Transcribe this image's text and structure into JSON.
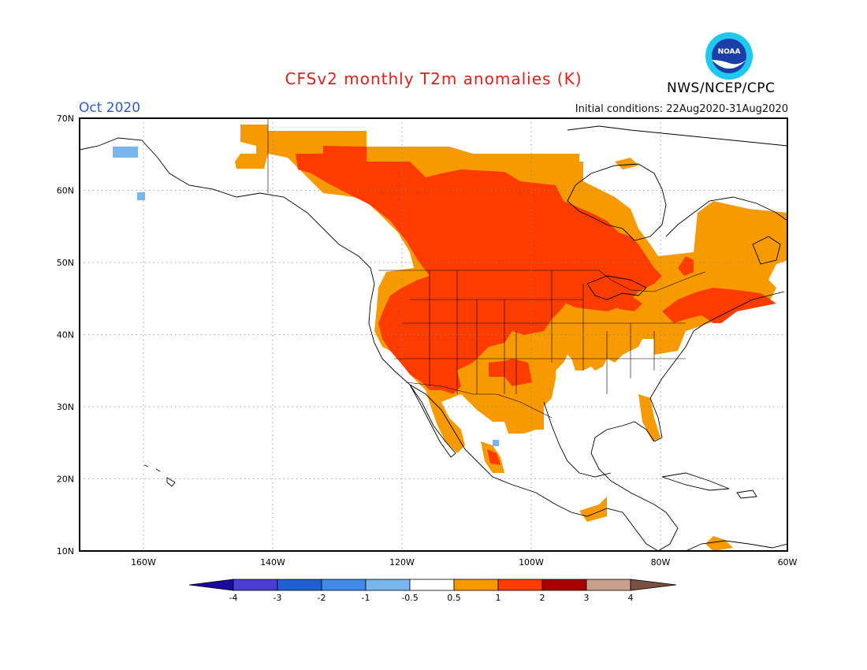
{
  "header": {
    "title": "CFSv2 monthly T2m anomalies (K)",
    "month": "Oct 2020",
    "initial_conditions": "Initial conditions: 22Aug2020-31Aug2020",
    "agency": "NWS/NCEP/CPC",
    "logo_text": "NOAA"
  },
  "map": {
    "lat_labels": [
      "70N",
      "60N",
      "50N",
      "40N",
      "30N",
      "20N",
      "10N"
    ],
    "lon_labels": [
      "160W",
      "140W",
      "120W",
      "100W",
      "80W",
      "60W"
    ]
  },
  "legend": {
    "labels": [
      "-4",
      "-3",
      "-2",
      "-1",
      "-0.5",
      "0.5",
      "1",
      "2",
      "3",
      "4"
    ],
    "colors": [
      "#1a0a9a",
      "#4a3ed0",
      "#1f5fd0",
      "#3f8ce6",
      "#7ab6ee",
      "#ffffff",
      "#f79a00",
      "#ff3c00",
      "#a80000",
      "#c8a08c",
      "#7a5040"
    ]
  }
}
